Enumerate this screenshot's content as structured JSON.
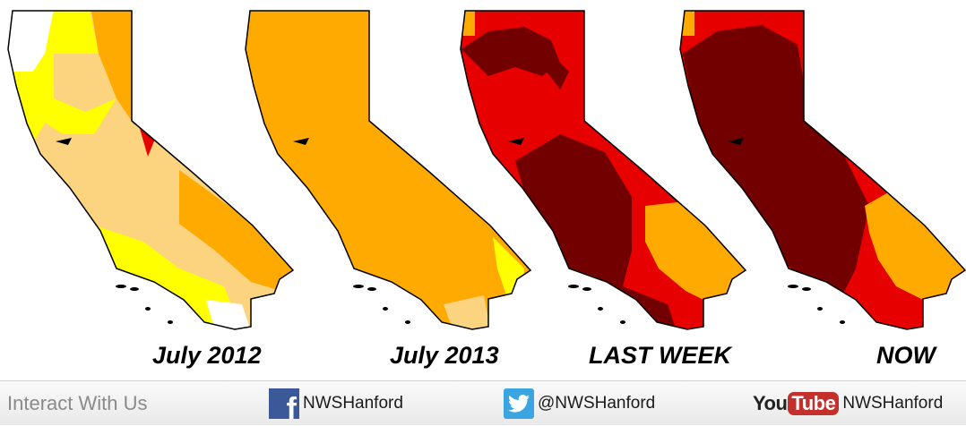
{
  "maps": [
    {
      "label": "July 2012",
      "dominant_category": "D0-D1 mixed",
      "colors": [
        "#ffffff",
        "#ffff00",
        "#fcd37f",
        "#ffaa00",
        "#e60000"
      ]
    },
    {
      "label": "July 2013",
      "dominant_category": "D2",
      "colors": [
        "#ffaa00",
        "#fcd37f",
        "#ffff00"
      ]
    },
    {
      "label": "LAST WEEK",
      "dominant_category": "D3-D4",
      "colors": [
        "#e60000",
        "#730000",
        "#ffaa00"
      ]
    },
    {
      "label": "NOW",
      "dominant_category": "D4",
      "colors": [
        "#730000",
        "#e60000",
        "#ffaa00"
      ]
    }
  ],
  "legend_colors": {
    "none": "#ffffff",
    "D0": "#ffff00",
    "D1": "#fcd37f",
    "D2": "#ffaa00",
    "D3": "#e60000",
    "D4": "#730000"
  },
  "footer": {
    "interact_text": "Interact With Us",
    "facebook": {
      "icon": "facebook-icon",
      "handle": "NWSHanford"
    },
    "twitter": {
      "icon": "twitter-icon",
      "handle": "@NWSHanford"
    },
    "youtube": {
      "icon": "youtube-logo",
      "logo_left": "You",
      "logo_right": "Tube",
      "handle": "NWSHanford"
    }
  }
}
